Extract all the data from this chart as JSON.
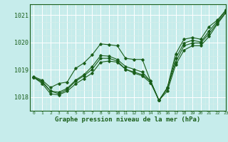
{
  "xlabel": "Graphe pression niveau de la mer (hPa)",
  "xlim": [
    -0.5,
    23
  ],
  "ylim": [
    1017.5,
    1021.4
  ],
  "yticks": [
    1018,
    1019,
    1020,
    1021
  ],
  "xticks": [
    0,
    1,
    2,
    3,
    4,
    5,
    6,
    7,
    8,
    9,
    10,
    11,
    12,
    13,
    14,
    15,
    16,
    17,
    18,
    19,
    20,
    21,
    22,
    23
  ],
  "bg_color": "#c6eceb",
  "line_color": "#1a5e1a",
  "grid_major_color": "#ffffff",
  "grid_minor_color": "#d8eeec",
  "curves": [
    {
      "x": [
        0,
        1,
        2,
        3,
        4,
        5,
        6,
        7,
        8,
        9,
        10,
        11,
        12,
        13,
        14,
        15,
        16,
        17,
        18,
        19,
        20,
        21,
        22,
        23
      ],
      "y": [
        1018.75,
        1018.62,
        1018.35,
        1018.5,
        1018.55,
        1019.05,
        1019.25,
        1019.55,
        1019.95,
        1019.92,
        1019.88,
        1019.42,
        1019.38,
        1019.38,
        1018.58,
        1017.88,
        1018.35,
        1019.58,
        1020.12,
        1020.18,
        1020.12,
        1020.58,
        1020.82,
        1021.18
      ]
    },
    {
      "x": [
        0,
        1,
        2,
        3,
        4,
        5,
        6,
        7,
        8,
        9,
        10,
        11,
        12,
        13,
        14,
        15,
        16,
        17,
        18,
        19,
        20,
        21,
        22,
        23
      ],
      "y": [
        1018.72,
        1018.58,
        1018.22,
        1018.18,
        1018.32,
        1018.62,
        1018.82,
        1019.12,
        1019.52,
        1019.5,
        1019.38,
        1019.12,
        1019.02,
        1018.92,
        1018.58,
        1017.88,
        1018.32,
        1019.42,
        1019.98,
        1020.08,
        1020.02,
        1020.42,
        1020.78,
        1021.18
      ]
    },
    {
      "x": [
        0,
        1,
        2,
        3,
        4,
        5,
        6,
        7,
        8,
        9,
        10,
        11,
        12,
        13,
        14,
        15,
        16,
        17,
        18,
        19,
        20,
        21,
        22,
        23
      ],
      "y": [
        1018.72,
        1018.55,
        1018.22,
        1018.12,
        1018.28,
        1018.58,
        1018.78,
        1019.02,
        1019.42,
        1019.42,
        1019.32,
        1019.02,
        1018.92,
        1018.82,
        1018.58,
        1017.88,
        1018.32,
        1019.28,
        1019.88,
        1019.98,
        1019.98,
        1020.32,
        1020.72,
        1021.12
      ]
    },
    {
      "x": [
        0,
        1,
        2,
        3,
        4,
        5,
        6,
        7,
        8,
        9,
        10,
        11,
        12,
        13,
        14,
        15,
        16,
        17,
        18,
        19,
        20,
        21,
        22,
        23
      ],
      "y": [
        1018.72,
        1018.5,
        1018.12,
        1018.08,
        1018.22,
        1018.48,
        1018.68,
        1018.88,
        1019.28,
        1019.32,
        1019.28,
        1019.02,
        1018.88,
        1018.78,
        1018.52,
        1017.88,
        1018.22,
        1019.18,
        1019.72,
        1019.88,
        1019.88,
        1020.22,
        1020.68,
        1021.08
      ]
    }
  ]
}
